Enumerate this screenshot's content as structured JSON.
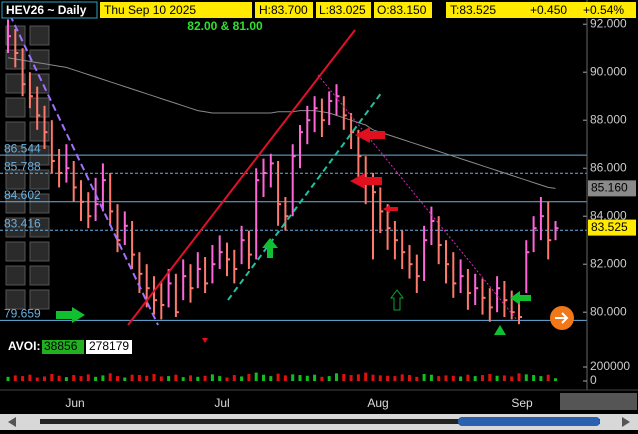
{
  "header": {
    "symbol": "HEV26 ~ Daily",
    "date": "Thu Sep 10 2025",
    "high": "H:83.700",
    "low": "L:83.025",
    "open": "O:83.150",
    "last": "T:83.525",
    "change": "+0.450",
    "change_pct": "+0.54%",
    "note": "82.00 & 81.00"
  },
  "volume_box": {
    "label": "AVOI:",
    "volume": "38856",
    "open_interest": "278179"
  },
  "x_labels": [
    "Jun",
    "Jul",
    "Aug",
    "Sep"
  ],
  "chart_data": {
    "type": "ohlc",
    "highs": [
      92.2,
      91.8,
      91.0,
      90.0,
      89.4,
      88.6,
      88.0,
      86.8,
      87.0,
      86.3,
      85.5,
      85.0,
      85.6,
      86.2,
      85.8,
      84.5,
      84.2,
      83.8,
      82.5,
      82.0,
      81.5,
      81.3,
      81.8,
      81.6,
      82.2,
      82.0,
      82.5,
      82.3,
      82.8,
      83.2,
      82.9,
      82.6,
      83.6,
      83.4,
      86.0,
      86.4,
      86.6,
      86.3,
      84.8,
      87.0,
      87.8,
      88.6,
      89.0,
      88.9,
      89.2,
      89.5,
      89.0,
      88.3,
      87.6,
      86.5,
      85.8,
      85.2,
      84.5,
      83.8,
      83.4,
      82.8,
      82.4,
      83.6,
      84.4,
      84.0,
      83.0,
      82.5,
      82.2,
      81.8,
      81.6,
      81.4,
      81.0,
      81.5,
      81.3,
      80.9,
      80.5,
      83.0,
      84.0,
      84.8,
      84.6,
      83.8
    ],
    "lows": [
      90.8,
      90.2,
      89.0,
      88.5,
      87.6,
      86.8,
      85.8,
      85.2,
      85.4,
      84.6,
      83.8,
      83.5,
      83.8,
      84.2,
      83.6,
      82.5,
      82.8,
      81.8,
      80.8,
      80.2,
      79.9,
      79.7,
      80.2,
      79.8,
      80.5,
      80.4,
      81.0,
      80.8,
      81.2,
      81.8,
      81.5,
      81.2,
      82.0,
      81.8,
      82.2,
      84.8,
      85.2,
      83.6,
      83.4,
      84.0,
      86.0,
      87.0,
      87.5,
      87.3,
      87.8,
      88.2,
      87.6,
      86.8,
      85.5,
      84.5,
      82.2,
      83.3,
      82.6,
      82.2,
      81.8,
      81.4,
      80.8,
      81.3,
      82.8,
      82.0,
      81.2,
      80.6,
      80.8,
      80.1,
      80.3,
      79.9,
      79.6,
      80.0,
      79.8,
      79.7,
      79.5,
      80.8,
      82.5,
      83.0,
      82.2,
      83.0
    ],
    "closes": [
      91.5,
      90.8,
      89.5,
      89.0,
      88.2,
      87.5,
      86.3,
      85.8,
      86.0,
      85.2,
      84.6,
      84.0,
      84.5,
      85.5,
      84.2,
      83.0,
      83.6,
      82.4,
      81.6,
      81.0,
      80.5,
      80.3,
      81.2,
      80.0,
      81.5,
      81.0,
      81.8,
      81.2,
      82.0,
      82.5,
      82.2,
      81.8,
      83.0,
      82.4,
      85.5,
      85.8,
      86.2,
      84.5,
      84.0,
      86.5,
      87.5,
      88.0,
      88.5,
      88.0,
      88.8,
      89.0,
      88.2,
      87.5,
      86.5,
      85.5,
      85.0,
      84.2,
      83.5,
      83.0,
      82.5,
      82.0,
      81.5,
      83.0,
      83.8,
      82.8,
      82.0,
      81.2,
      81.5,
      80.8,
      81.0,
      80.6,
      80.2,
      81.0,
      80.5,
      80.0,
      79.8,
      82.5,
      83.5,
      84.0,
      83.0,
      83.5
    ],
    "ma": [
      90.6,
      90.55,
      90.5,
      90.45,
      90.4,
      90.35,
      90.3,
      90.25,
      90.2,
      90.1,
      90.0,
      89.9,
      89.8,
      89.7,
      89.6,
      89.5,
      89.4,
      89.3,
      89.2,
      89.1,
      89.0,
      88.9,
      88.8,
      88.7,
      88.6,
      88.5,
      88.4,
      88.35,
      88.3,
      88.3,
      88.3,
      88.3,
      88.3,
      88.3,
      88.3,
      88.3,
      88.3,
      88.35,
      88.35,
      88.35,
      88.4,
      88.4,
      88.4,
      88.35,
      88.3,
      88.2,
      88.1,
      88.0,
      87.9,
      87.8,
      87.6,
      87.5,
      87.4,
      87.3,
      87.2,
      87.1,
      87.0,
      86.9,
      86.8,
      86.7,
      86.6,
      86.5,
      86.4,
      86.3,
      86.2,
      86.1,
      86.0,
      85.9,
      85.8,
      85.7,
      85.6,
      85.5,
      85.4,
      85.3,
      85.2,
      85.16
    ],
    "volumes": [
      60000,
      80000,
      70000,
      90000,
      50000,
      65000,
      100000,
      75000,
      55000,
      85000,
      70000,
      95000,
      60000,
      80000,
      110000,
      70000,
      50000,
      90000,
      85000,
      75000,
      100000,
      65000,
      70000,
      90000,
      55000,
      80000,
      60000,
      75000,
      95000,
      70000,
      50000,
      85000,
      65000,
      100000,
      120000,
      90000,
      70000,
      105000,
      80000,
      95000,
      85000,
      75000,
      90000,
      60000,
      70000,
      110000,
      100000,
      85000,
      95000,
      120000,
      90000,
      80000,
      75000,
      70000,
      95000,
      85000,
      60000,
      100000,
      90000,
      70000,
      80000,
      75000,
      65000,
      90000,
      70000,
      85000,
      100000,
      75000,
      80000,
      65000,
      110000,
      95000,
      85000,
      70000,
      90000,
      38856
    ],
    "up_color": "#ff66d9",
    "down_color": "#ff7a6e",
    "ma_color": "#8a8a8a",
    "ylim": [
      79.3,
      92.8
    ],
    "yticks": [
      {
        "value": 92,
        "label": "92.000"
      },
      {
        "value": 90,
        "label": "90.000"
      },
      {
        "value": 88,
        "label": "88.000"
      },
      {
        "value": 86,
        "label": "86.000"
      },
      {
        "value": 84,
        "label": "84.000"
      },
      {
        "value": 82,
        "label": "82.000"
      },
      {
        "value": 80,
        "label": "80.000"
      }
    ],
    "levels": [
      {
        "value": 86.544,
        "label": "86.544"
      },
      {
        "value": 85.788,
        "label": "85.788"
      },
      {
        "value": 84.602,
        "label": "84.602"
      },
      {
        "value": 83.416,
        "label": "83.416"
      },
      {
        "value": 79.659,
        "label": "79.659"
      }
    ],
    "price_tags": [
      {
        "value": 85.16,
        "label": "85.160"
      },
      {
        "value": 83.525,
        "label": "83.525"
      }
    ],
    "vol_ylim": [
      0,
      400000
    ],
    "vol_ticks": [
      200000,
      0
    ]
  }
}
